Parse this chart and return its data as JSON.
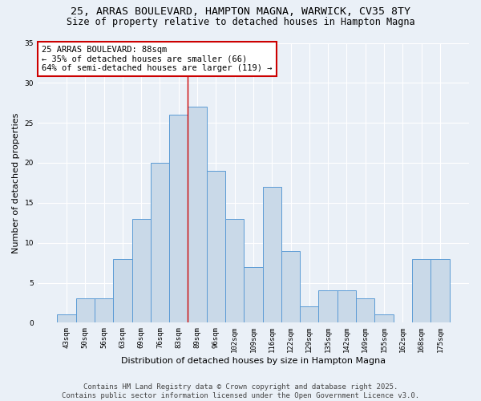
{
  "title_line1": "25, ARRAS BOULEVARD, HAMPTON MAGNA, WARWICK, CV35 8TY",
  "title_line2": "Size of property relative to detached houses in Hampton Magna",
  "xlabel": "Distribution of detached houses by size in Hampton Magna",
  "ylabel": "Number of detached properties",
  "bar_labels": [
    "43sqm",
    "50sqm",
    "56sqm",
    "63sqm",
    "69sqm",
    "76sqm",
    "83sqm",
    "89sqm",
    "96sqm",
    "102sqm",
    "109sqm",
    "116sqm",
    "122sqm",
    "129sqm",
    "135sqm",
    "142sqm",
    "149sqm",
    "155sqm",
    "162sqm",
    "168sqm",
    "175sqm"
  ],
  "bar_values": [
    1,
    3,
    3,
    8,
    13,
    20,
    26,
    27,
    19,
    13,
    7,
    17,
    9,
    2,
    4,
    4,
    3,
    1,
    0,
    8,
    8
  ],
  "bar_color": "#c9d9e8",
  "bar_edge_color": "#5b9bd5",
  "bg_color": "#eaf0f7",
  "grid_color": "#ffffff",
  "annotation_text": "25 ARRAS BOULEVARD: 88sqm\n← 35% of detached houses are smaller (66)\n64% of semi-detached houses are larger (119) →",
  "annotation_box_color": "#ffffff",
  "annotation_box_edge_color": "#cc0000",
  "vline_x_index": 7,
  "ylim": [
    0,
    35
  ],
  "yticks": [
    0,
    5,
    10,
    15,
    20,
    25,
    30,
    35
  ],
  "footer": "Contains HM Land Registry data © Crown copyright and database right 2025.\nContains public sector information licensed under the Open Government Licence v3.0.",
  "title_fontsize": 9.5,
  "subtitle_fontsize": 8.5,
  "axis_label_fontsize": 8,
  "tick_fontsize": 6.5,
  "annotation_fontsize": 7.5,
  "footer_fontsize": 6.5
}
